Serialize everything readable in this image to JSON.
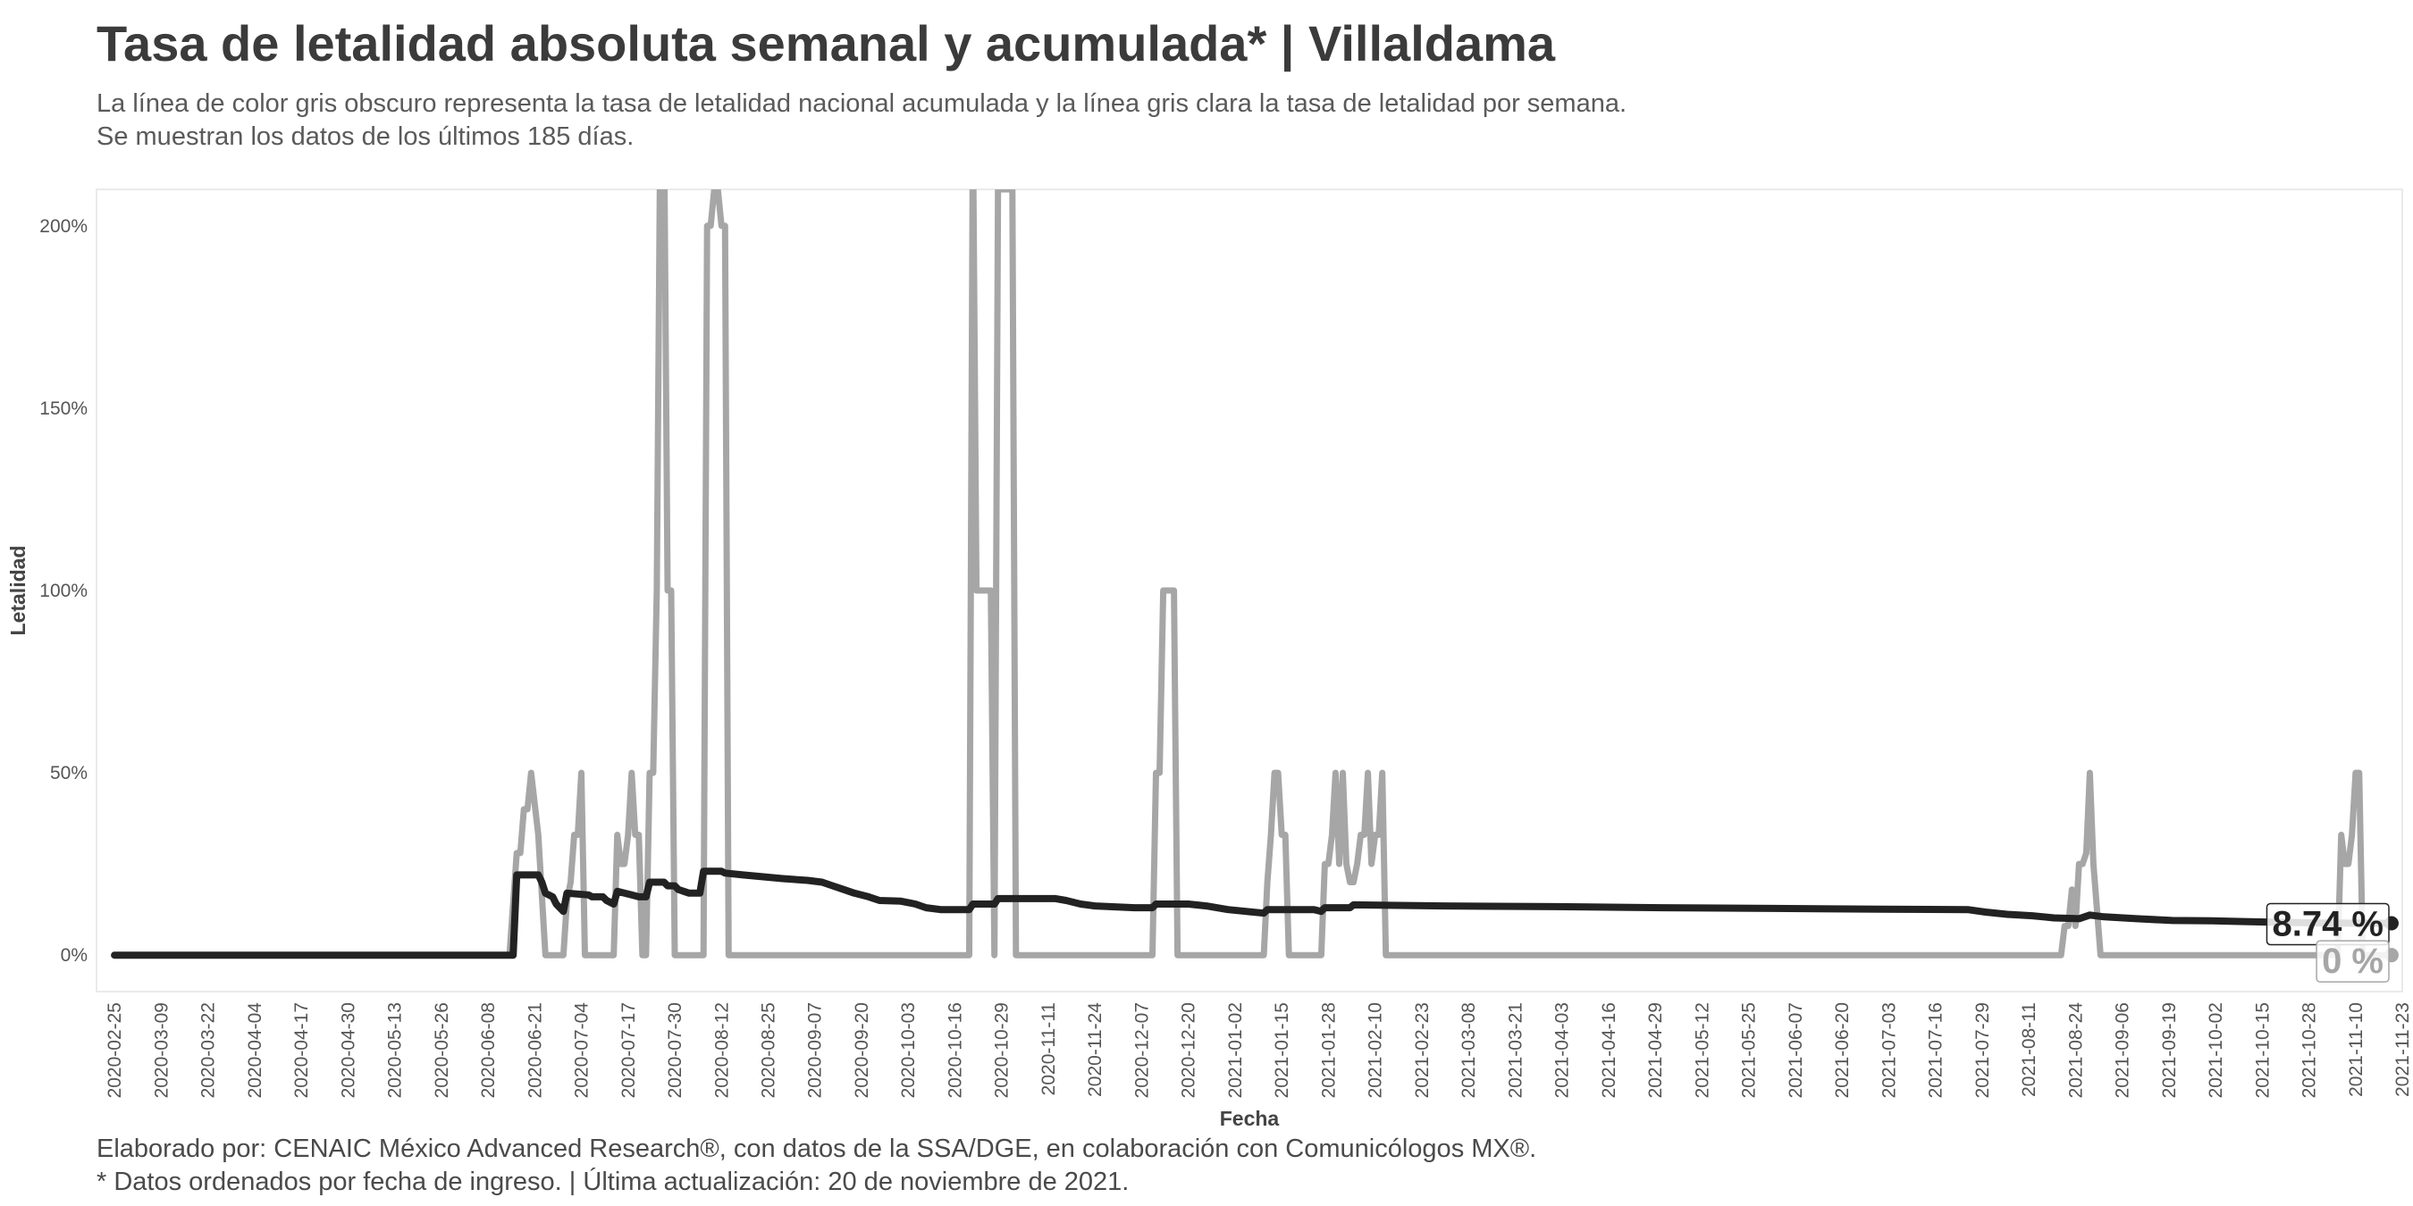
{
  "title": "Tasa de letalidad absoluta semanal y acumulada* | Villaldama",
  "subtitle_lines": [
    "La línea de color gris obscuro representa la tasa de letalidad nacional acumulada y la línea gris clara la tasa de letalidad por semana.",
    "Se muestran los datos de los últimos 185 días."
  ],
  "caption_lines": [
    "Elaborado por: CENAIC México Advanced Research®, con datos de la SSA/DGE, en colaboración con Comunicólogos MX®.",
    "* Datos ordenados por fecha de ingreso. | Última actualización: 20 de noviembre de 2021."
  ],
  "colors": {
    "accumulated": "#222222",
    "weekly": "#a6a6a6",
    "text": "#3b3b3b",
    "grid_border": "#e3e3e3"
  },
  "chart_data": {
    "type": "line",
    "xlabel": "Fecha",
    "ylabel": "Letalidad",
    "x_type": "date",
    "xlim": [
      "2020-02-20",
      "2021-11-23"
    ],
    "ylim": [
      -0.1,
      2.1
    ],
    "y_ticks": [
      0,
      0.5,
      1.0,
      1.5,
      2.0
    ],
    "y_tick_labels": [
      "0%",
      "50%",
      "100%",
      "150%",
      "200%"
    ],
    "x_ticks": [
      "2020-02-25",
      "2020-03-09",
      "2020-03-22",
      "2020-04-04",
      "2020-04-17",
      "2020-04-30",
      "2020-05-13",
      "2020-05-26",
      "2020-06-08",
      "2020-06-21",
      "2020-07-04",
      "2020-07-17",
      "2020-07-30",
      "2020-08-12",
      "2020-08-25",
      "2020-09-07",
      "2020-09-20",
      "2020-10-03",
      "2020-10-16",
      "2020-10-29",
      "2020-11-11",
      "2020-11-24",
      "2020-12-07",
      "2020-12-20",
      "2021-01-02",
      "2021-01-15",
      "2021-01-28",
      "2021-02-10",
      "2021-02-23",
      "2021-03-08",
      "2021-03-21",
      "2021-04-03",
      "2021-04-16",
      "2021-04-29",
      "2021-05-12",
      "2021-05-25",
      "2021-06-07",
      "2021-06-20",
      "2021-07-03",
      "2021-07-16",
      "2021-07-29",
      "2021-08-11",
      "2021-08-24",
      "2021-09-06",
      "2021-09-19",
      "2021-10-02",
      "2021-10-15",
      "2021-10-28",
      "2021-11-10",
      "2021-11-23"
    ],
    "grid": false,
    "series": [
      {
        "role": "weekly",
        "points": [
          [
            "2020-02-25",
            0
          ],
          [
            "2020-06-14",
            0
          ],
          [
            "2020-06-16",
            0.28
          ],
          [
            "2020-06-17",
            0.28
          ],
          [
            "2020-06-18",
            0.4
          ],
          [
            "2020-06-19",
            0.4
          ],
          [
            "2020-06-20",
            0.5
          ],
          [
            "2020-06-22",
            0.33
          ],
          [
            "2020-06-24",
            0
          ],
          [
            "2020-06-29",
            0
          ],
          [
            "2020-06-30",
            0.15
          ],
          [
            "2020-07-01",
            0.2
          ],
          [
            "2020-07-02",
            0.33
          ],
          [
            "2020-07-03",
            0.33
          ],
          [
            "2020-07-04",
            0.5
          ],
          [
            "2020-07-05",
            0
          ],
          [
            "2020-07-13",
            0
          ],
          [
            "2020-07-14",
            0.33
          ],
          [
            "2020-07-15",
            0.25
          ],
          [
            "2020-07-16",
            0.25
          ],
          [
            "2020-07-17",
            0.33
          ],
          [
            "2020-07-18",
            0.5
          ],
          [
            "2020-07-19",
            0.33
          ],
          [
            "2020-07-20",
            0.33
          ],
          [
            "2020-07-21",
            0
          ],
          [
            "2020-07-22",
            0
          ],
          [
            "2020-07-23",
            0.5
          ],
          [
            "2020-07-24",
            0.5
          ],
          [
            "2020-07-25",
            1.0
          ],
          [
            "2020-07-26",
            2.3
          ],
          [
            "2020-07-27",
            2.3
          ],
          [
            "2020-07-28",
            1.0
          ],
          [
            "2020-07-29",
            1.0
          ],
          [
            "2020-07-30",
            0
          ],
          [
            "2020-08-07",
            0
          ],
          [
            "2020-08-08",
            2.0
          ],
          [
            "2020-08-09",
            2.0
          ],
          [
            "2020-08-10",
            2.1
          ],
          [
            "2020-08-11",
            2.1
          ],
          [
            "2020-08-12",
            2.0
          ],
          [
            "2020-08-13",
            2.0
          ],
          [
            "2020-08-14",
            0
          ],
          [
            "2020-10-20",
            0
          ],
          [
            "2020-10-21",
            2.3
          ],
          [
            "2020-10-22",
            1.0
          ],
          [
            "2020-10-26",
            1.0
          ],
          [
            "2020-10-27",
            0
          ],
          [
            "2020-10-28",
            2.1
          ],
          [
            "2020-11-01",
            2.1
          ],
          [
            "2020-11-02",
            0
          ],
          [
            "2020-12-10",
            0
          ],
          [
            "2020-12-11",
            0.5
          ],
          [
            "2020-12-12",
            0.5
          ],
          [
            "2020-12-13",
            1.0
          ],
          [
            "2020-12-16",
            1.0
          ],
          [
            "2020-12-17",
            0
          ],
          [
            "2021-01-10",
            0
          ],
          [
            "2021-01-11",
            0.2
          ],
          [
            "2021-01-12",
            0.33
          ],
          [
            "2021-01-13",
            0.5
          ],
          [
            "2021-01-14",
            0.5
          ],
          [
            "2021-01-15",
            0.33
          ],
          [
            "2021-01-16",
            0.33
          ],
          [
            "2021-01-17",
            0
          ],
          [
            "2021-01-26",
            0
          ],
          [
            "2021-01-27",
            0.25
          ],
          [
            "2021-01-28",
            0.25
          ],
          [
            "2021-01-29",
            0.33
          ],
          [
            "2021-01-30",
            0.5
          ],
          [
            "2021-01-31",
            0.25
          ],
          [
            "2021-02-01",
            0.5
          ],
          [
            "2021-02-02",
            0.25
          ],
          [
            "2021-02-03",
            0.2
          ],
          [
            "2021-02-04",
            0.2
          ],
          [
            "2021-02-05",
            0.25
          ],
          [
            "2021-02-06",
            0.33
          ],
          [
            "2021-02-07",
            0.33
          ],
          [
            "2021-02-08",
            0.5
          ],
          [
            "2021-02-09",
            0.25
          ],
          [
            "2021-02-10",
            0.33
          ],
          [
            "2021-02-11",
            0.33
          ],
          [
            "2021-02-12",
            0.5
          ],
          [
            "2021-02-13",
            0
          ],
          [
            "2021-08-20",
            0
          ],
          [
            "2021-08-21",
            0.08
          ],
          [
            "2021-08-22",
            0.08
          ],
          [
            "2021-08-23",
            0.18
          ],
          [
            "2021-08-24",
            0.08
          ],
          [
            "2021-08-25",
            0.25
          ],
          [
            "2021-08-26",
            0.25
          ],
          [
            "2021-08-27",
            0.28
          ],
          [
            "2021-08-28",
            0.5
          ],
          [
            "2021-08-29",
            0.25
          ],
          [
            "2021-08-31",
            0
          ],
          [
            "2021-11-05",
            0
          ],
          [
            "2021-11-06",
            0.33
          ],
          [
            "2021-11-07",
            0.25
          ],
          [
            "2021-11-08",
            0.25
          ],
          [
            "2021-11-09",
            0.33
          ],
          [
            "2021-11-10",
            0.5
          ],
          [
            "2021-11-11",
            0.5
          ],
          [
            "2021-11-12",
            0
          ],
          [
            "2021-11-20",
            0
          ]
        ]
      },
      {
        "role": "accumulated",
        "points": [
          [
            "2020-02-25",
            0
          ],
          [
            "2020-06-15",
            0
          ],
          [
            "2020-06-16",
            0.22
          ],
          [
            "2020-06-22",
            0.22
          ],
          [
            "2020-06-23",
            0.2
          ],
          [
            "2020-06-24",
            0.17
          ],
          [
            "2020-06-26",
            0.16
          ],
          [
            "2020-06-27",
            0.14
          ],
          [
            "2020-06-28",
            0.13
          ],
          [
            "2020-06-29",
            0.12
          ],
          [
            "2020-06-30",
            0.17
          ],
          [
            "2020-07-06",
            0.165
          ],
          [
            "2020-07-07",
            0.16
          ],
          [
            "2020-07-10",
            0.16
          ],
          [
            "2020-07-11",
            0.15
          ],
          [
            "2020-07-13",
            0.14
          ],
          [
            "2020-07-14",
            0.175
          ],
          [
            "2020-07-18",
            0.165
          ],
          [
            "2020-07-20",
            0.16
          ],
          [
            "2020-07-22",
            0.16
          ],
          [
            "2020-07-23",
            0.2
          ],
          [
            "2020-07-27",
            0.2
          ],
          [
            "2020-07-28",
            0.19
          ],
          [
            "2020-07-30",
            0.19
          ],
          [
            "2020-07-31",
            0.18
          ],
          [
            "2020-08-03",
            0.17
          ],
          [
            "2020-08-06",
            0.17
          ],
          [
            "2020-08-07",
            0.23
          ],
          [
            "2020-08-12",
            0.23
          ],
          [
            "2020-08-13",
            0.225
          ],
          [
            "2020-08-18",
            0.22
          ],
          [
            "2020-08-29",
            0.21
          ],
          [
            "2020-09-05",
            0.205
          ],
          [
            "2020-09-09",
            0.2
          ],
          [
            "2020-09-12",
            0.19
          ],
          [
            "2020-09-15",
            0.18
          ],
          [
            "2020-09-18",
            0.17
          ],
          [
            "2020-09-22",
            0.16
          ],
          [
            "2020-09-25",
            0.15
          ],
          [
            "2020-10-01",
            0.148
          ],
          [
            "2020-10-05",
            0.14
          ],
          [
            "2020-10-08",
            0.13
          ],
          [
            "2020-10-12",
            0.125
          ],
          [
            "2020-10-20",
            0.125
          ],
          [
            "2020-10-21",
            0.14
          ],
          [
            "2020-10-27",
            0.14
          ],
          [
            "2020-10-28",
            0.155
          ],
          [
            "2020-11-13",
            0.155
          ],
          [
            "2020-11-16",
            0.15
          ],
          [
            "2020-11-20",
            0.14
          ],
          [
            "2020-11-24",
            0.135
          ],
          [
            "2020-12-05",
            0.13
          ],
          [
            "2020-12-10",
            0.13
          ],
          [
            "2020-12-11",
            0.14
          ],
          [
            "2020-12-20",
            0.14
          ],
          [
            "2020-12-25",
            0.135
          ],
          [
            "2020-12-31",
            0.125
          ],
          [
            "2021-01-05",
            0.12
          ],
          [
            "2021-01-10",
            0.115
          ],
          [
            "2021-01-11",
            0.125
          ],
          [
            "2021-01-24",
            0.125
          ],
          [
            "2021-01-26",
            0.12
          ],
          [
            "2021-01-27",
            0.13
          ],
          [
            "2021-02-03",
            0.13
          ],
          [
            "2021-02-04",
            0.138
          ],
          [
            "2021-03-01",
            0.135
          ],
          [
            "2021-04-01",
            0.133
          ],
          [
            "2021-05-01",
            0.13
          ],
          [
            "2021-06-01",
            0.128
          ],
          [
            "2021-07-01",
            0.126
          ],
          [
            "2021-07-25",
            0.125
          ],
          [
            "2021-07-30",
            0.118
          ],
          [
            "2021-08-05",
            0.112
          ],
          [
            "2021-08-12",
            0.108
          ],
          [
            "2021-08-18",
            0.102
          ],
          [
            "2021-08-25",
            0.1
          ],
          [
            "2021-08-28",
            0.11
          ],
          [
            "2021-09-01",
            0.105
          ],
          [
            "2021-09-10",
            0.1
          ],
          [
            "2021-09-20",
            0.095
          ],
          [
            "2021-10-01",
            0.094
          ],
          [
            "2021-10-10",
            0.092
          ],
          [
            "2021-10-20",
            0.09
          ],
          [
            "2021-11-01",
            0.088
          ],
          [
            "2021-11-20",
            0.0874
          ]
        ]
      }
    ],
    "end_labels": [
      {
        "role": "accumulated",
        "text": "8.74 %",
        "value": 0.0874
      },
      {
        "role": "weekly",
        "text": "0 %",
        "value": 0
      }
    ]
  }
}
